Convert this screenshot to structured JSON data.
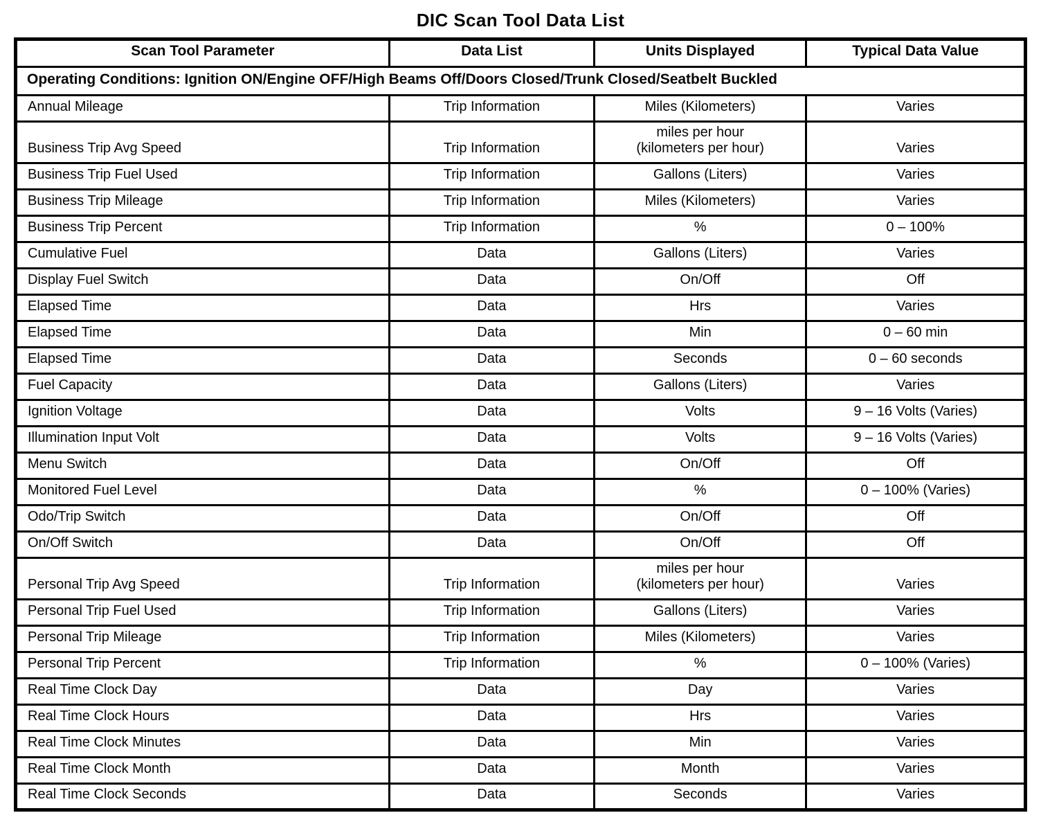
{
  "title": "DIC Scan Tool Data List",
  "table": {
    "columns": [
      "Scan Tool Parameter",
      "Data List",
      "Units Displayed",
      "Typical Data Value"
    ],
    "operating_conditions": "Operating Conditions: Ignition ON/Engine OFF/High Beams Off/Doors Closed/Trunk Closed/Seatbelt Buckled",
    "rows": [
      [
        "Annual Mileage",
        "Trip Information",
        "Miles (Kilometers)",
        "Varies"
      ],
      [
        "Business Trip Avg Speed",
        "Trip Information",
        "miles per hour\n(kilometers per hour)",
        "Varies"
      ],
      [
        "Business Trip Fuel Used",
        "Trip Information",
        "Gallons (Liters)",
        "Varies"
      ],
      [
        "Business Trip Mileage",
        "Trip Information",
        "Miles (Kilometers)",
        "Varies"
      ],
      [
        "Business Trip Percent",
        "Trip Information",
        "%",
        "0 – 100%"
      ],
      [
        "Cumulative Fuel",
        "Data",
        "Gallons (Liters)",
        "Varies"
      ],
      [
        "Display Fuel Switch",
        "Data",
        "On/Off",
        "Off"
      ],
      [
        "Elapsed Time",
        "Data",
        "Hrs",
        "Varies"
      ],
      [
        "Elapsed Time",
        "Data",
        "Min",
        "0 – 60 min"
      ],
      [
        "Elapsed Time",
        "Data",
        "Seconds",
        "0 – 60 seconds"
      ],
      [
        "Fuel Capacity",
        "Data",
        "Gallons (Liters)",
        "Varies"
      ],
      [
        "Ignition Voltage",
        "Data",
        "Volts",
        "9 – 16 Volts (Varies)"
      ],
      [
        "Illumination Input Volt",
        "Data",
        "Volts",
        "9 – 16 Volts (Varies)"
      ],
      [
        "Menu Switch",
        "Data",
        "On/Off",
        "Off"
      ],
      [
        "Monitored Fuel Level",
        "Data",
        "%",
        "0 – 100% (Varies)"
      ],
      [
        "Odo/Trip Switch",
        "Data",
        "On/Off",
        "Off"
      ],
      [
        "On/Off Switch",
        "Data",
        "On/Off",
        "Off"
      ],
      [
        "Personal Trip Avg Speed",
        "Trip Information",
        "miles per hour\n(kilometers per hour)",
        "Varies"
      ],
      [
        "Personal Trip Fuel Used",
        "Trip Information",
        "Gallons (Liters)",
        "Varies"
      ],
      [
        "Personal Trip Mileage",
        "Trip Information",
        "Miles (Kilometers)",
        "Varies"
      ],
      [
        "Personal Trip Percent",
        "Trip Information",
        "%",
        "0 – 100% (Varies)"
      ],
      [
        "Real Time Clock Day",
        "Data",
        "Day",
        "Varies"
      ],
      [
        "Real Time Clock Hours",
        "Data",
        "Hrs",
        "Varies"
      ],
      [
        "Real Time Clock Minutes",
        "Data",
        "Min",
        "Varies"
      ],
      [
        "Real Time Clock Month",
        "Data",
        "Month",
        "Varies"
      ],
      [
        "Real Time Clock Seconds",
        "Data",
        "Seconds",
        "Varies"
      ]
    ]
  }
}
